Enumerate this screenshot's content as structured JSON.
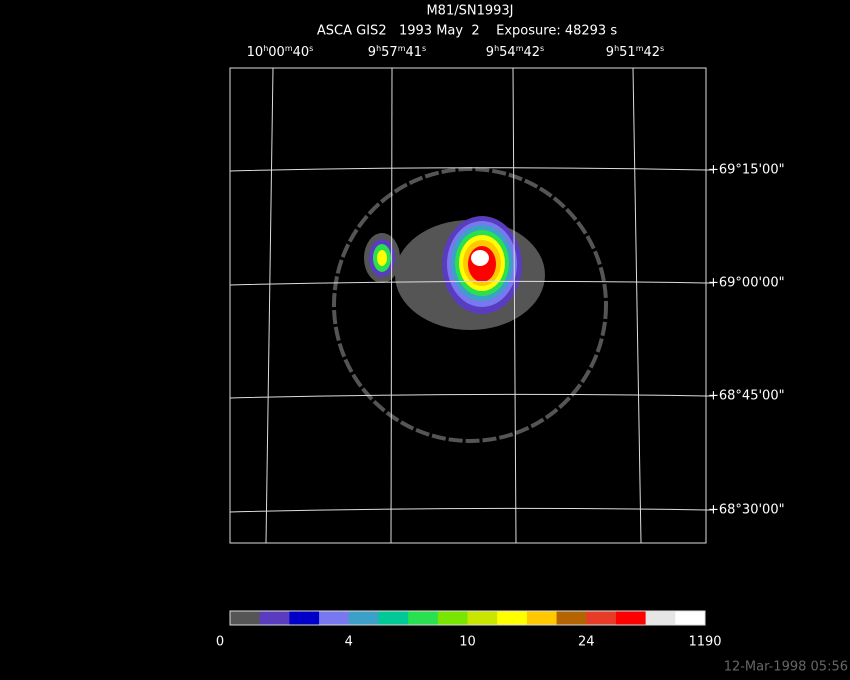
{
  "header": {
    "title": "M81/SN1993J",
    "subtitle": "ASCA GIS2   1993 May  2    Exposure: 48293 s"
  },
  "ra_units": [
    "h",
    "m",
    "s"
  ],
  "ra_labels": [
    {
      "h": "10",
      "m": "00",
      "s": "40"
    },
    {
      "h": "9",
      "m": "57",
      "s": "41"
    },
    {
      "h": "9",
      "m": "54",
      "s": "42"
    },
    {
      "h": "9",
      "m": "51",
      "s": "42"
    }
  ],
  "dec_labels": [
    "+69°15'00\"",
    "+69°00'00\"",
    "+68°45'00\"",
    "+68°30'00\""
  ],
  "colorbar": {
    "colors": [
      "#555555",
      "#5a3cc0",
      "#0000c8",
      "#7878f0",
      "#3ca0c8",
      "#00c896",
      "#28e050",
      "#78e600",
      "#c8e600",
      "#ffff00",
      "#ffc800",
      "#b46400",
      "#e63c28",
      "#ff0000",
      "#e6e6e6",
      "#ffffff"
    ],
    "labels": [
      "0",
      "4",
      "10",
      "24",
      "1190"
    ]
  },
  "timestamp": "12-Mar-1998 05:56"
}
